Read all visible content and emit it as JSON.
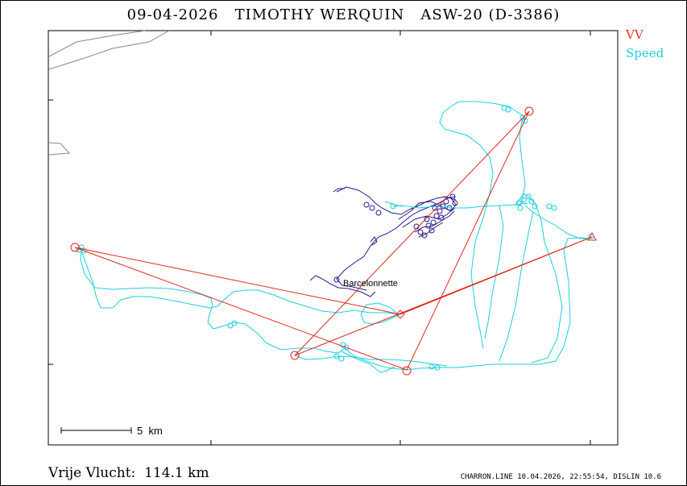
{
  "title": "09-04-2026   TIMOTHY WERQUIN   ASW-20 (D-3386)",
  "legend": {
    "vv": "VV",
    "speed": "Speed",
    "colors": {
      "vv": "#e8322d",
      "speed": "#19d0e0"
    }
  },
  "map": {
    "place_label": "Barcelonnette",
    "scale_label": "5  km",
    "colors": {
      "task": "#e02a22",
      "track_high": "#19d0e0",
      "track_low": "#2a1a8c",
      "terrain": "#888888"
    }
  },
  "footer": {
    "distance": "Vrije Vlucht:  114.1 km",
    "credits": "CHARRON.LINE 10.04.2026, 22:55:54, DISLIN 10.6"
  }
}
